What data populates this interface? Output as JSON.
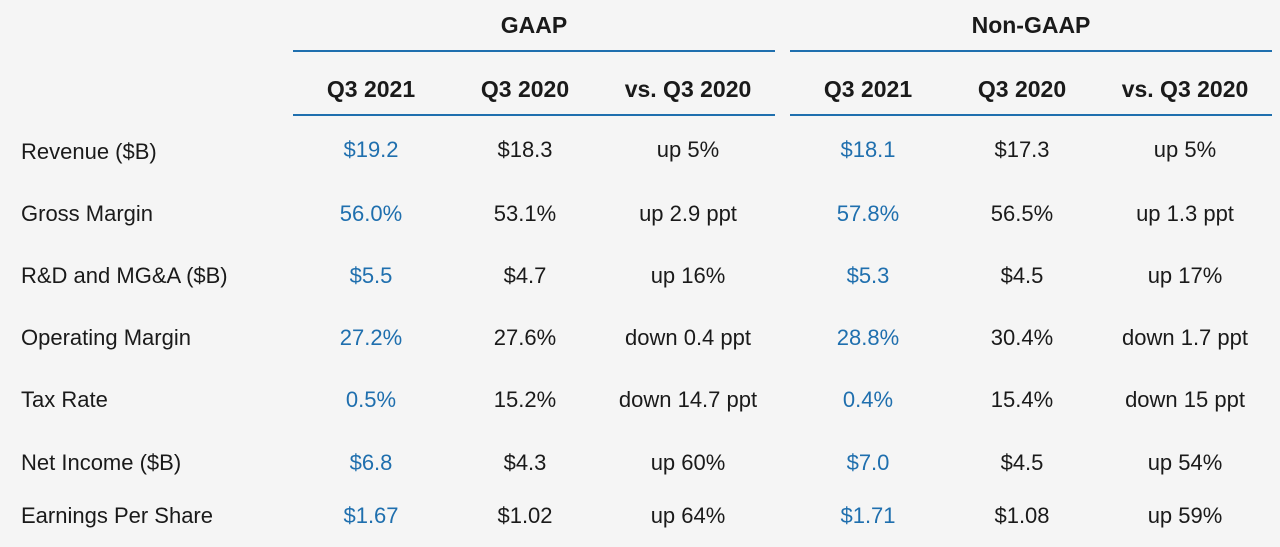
{
  "groups": {
    "gaap": {
      "title": "GAAP"
    },
    "nongaap": {
      "title": "Non-GAAP"
    }
  },
  "column_headers": [
    "Q3 2021",
    "Q3 2020",
    "vs. Q3 2020",
    "Q3 2021",
    "Q3 2020",
    "vs. Q3 2020"
  ],
  "colors": {
    "highlight": "#1f6fae",
    "text": "#1a1a1a",
    "background": "#f5f5f5"
  },
  "rows": [
    {
      "label": "Revenue ($B)",
      "values": [
        "$19.2",
        "$18.3",
        "up 5%",
        "$18.1",
        "$17.3",
        "up 5%"
      ]
    },
    {
      "label": "Gross Margin",
      "values": [
        "56.0%",
        "53.1%",
        "up 2.9 ppt",
        "57.8%",
        "56.5%",
        "up 1.3 ppt"
      ]
    },
    {
      "label": "R&D and MG&A ($B)",
      "values": [
        "$5.5",
        "$4.7",
        "up 16%",
        "$5.3",
        "$4.5",
        "up 17%"
      ]
    },
    {
      "label": "Operating Margin",
      "values": [
        "27.2%",
        "27.6%",
        "down 0.4 ppt",
        "28.8%",
        "30.4%",
        "down 1.7 ppt"
      ]
    },
    {
      "label": "Tax Rate",
      "values": [
        "0.5%",
        "15.2%",
        "down 14.7 ppt",
        "0.4%",
        "15.4%",
        "down 15 ppt"
      ]
    },
    {
      "label": "Net Income ($B)",
      "values": [
        "$6.8",
        "$4.3",
        "up 60%",
        "$7.0",
        "$4.5",
        "up 54%"
      ]
    },
    {
      "label": "Earnings Per Share",
      "values": [
        "$1.67",
        "$1.02",
        "up 64%",
        "$1.71",
        "$1.08",
        "up 59%"
      ]
    }
  ]
}
